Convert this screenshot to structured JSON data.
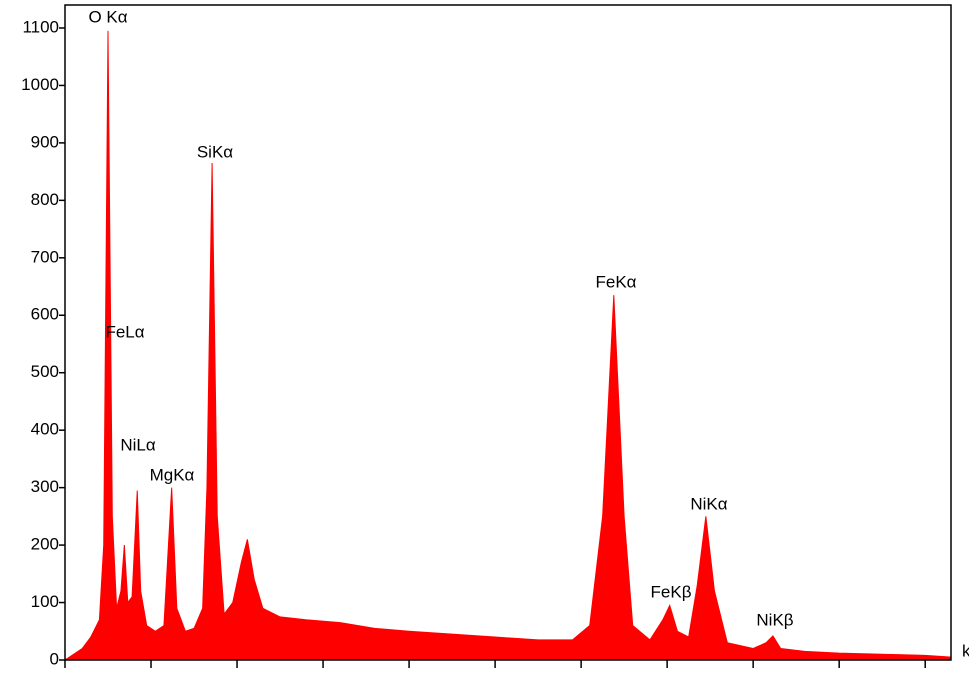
{
  "chart_data": {
    "type": "area",
    "x_label": "k",
    "color": "#ff0000",
    "x": [
      0.0,
      0.1,
      0.2,
      0.3,
      0.4,
      0.45,
      0.5,
      0.55,
      0.6,
      0.65,
      0.69,
      0.73,
      0.78,
      0.84,
      0.88,
      0.95,
      1.05,
      1.15,
      1.24,
      1.3,
      1.4,
      1.5,
      1.6,
      1.65,
      1.71,
      1.77,
      1.85,
      1.95,
      2.05,
      2.12,
      2.2,
      2.3,
      2.5,
      2.8,
      3.2,
      3.6,
      4.0,
      4.5,
      5.0,
      5.5,
      5.9,
      6.1,
      6.25,
      6.38,
      6.5,
      6.6,
      6.8,
      6.95,
      7.03,
      7.12,
      7.25,
      7.35,
      7.45,
      7.55,
      7.7,
      8.0,
      8.15,
      8.23,
      8.32,
      8.6,
      9.0,
      9.5,
      10.0,
      10.3
    ],
    "values": [
      0,
      10,
      20,
      40,
      70,
      200,
      1095,
      250,
      90,
      120,
      200,
      100,
      110,
      295,
      120,
      60,
      50,
      60,
      300,
      90,
      50,
      55,
      90,
      300,
      865,
      250,
      80,
      100,
      170,
      210,
      140,
      90,
      75,
      70,
      65,
      55,
      50,
      45,
      40,
      35,
      35,
      60,
      250,
      635,
      250,
      60,
      35,
      70,
      95,
      50,
      40,
      130,
      250,
      120,
      30,
      20,
      30,
      42,
      20,
      15,
      12,
      10,
      8,
      5
    ],
    "annotations": [
      "O Kα",
      "FeLα",
      "NiLα",
      "MgKα",
      "SiKα",
      "FeKα",
      "FeKβ",
      "NiKα",
      "NiKβ"
    ],
    "xlim": [
      0,
      10.3
    ],
    "xticks": [
      0,
      1,
      2,
      3,
      4,
      5,
      6,
      7,
      8,
      9,
      10
    ],
    "ylim": [
      0,
      1140
    ],
    "yticks": [
      0,
      100,
      200,
      300,
      400,
      500,
      600,
      700,
      800,
      900,
      1000,
      1100
    ],
    "grid": false
  }
}
